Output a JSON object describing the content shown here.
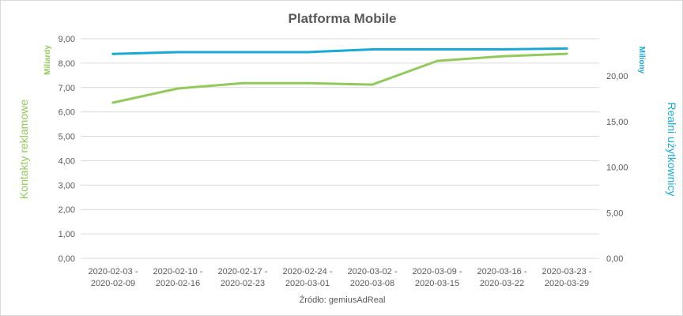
{
  "chart_data": {
    "type": "line",
    "title": "Platforma Mobile",
    "source": "Źródło: gemiusAdReal",
    "categories": [
      [
        "2020-02-03 -",
        "2020-02-09"
      ],
      [
        "2020-02-10 -",
        "2020-02-16"
      ],
      [
        "2020-02-17 -",
        "2020-02-23"
      ],
      [
        "2020-02-24 -",
        "2020-03-01"
      ],
      [
        "2020-03-02 -",
        "2020-03-08"
      ],
      [
        "2020-03-09 -",
        "2020-03-15"
      ],
      [
        "2020-03-16 -",
        "2020-03-22"
      ],
      [
        "2020-03-23 -",
        "2020-03-29"
      ]
    ],
    "left_axis": {
      "label": "Kontakty reklamowe",
      "unit": "Miliardy",
      "ylim": [
        0,
        9
      ],
      "ticks": [
        "0,00",
        "1,00",
        "2,00",
        "3,00",
        "4,00",
        "5,00",
        "6,00",
        "7,00",
        "8,00",
        "9,00"
      ]
    },
    "right_axis": {
      "label": "Realni użytkownicy",
      "unit": "Miliony",
      "ylim": [
        0,
        24.07
      ],
      "ticks": [
        "0,00",
        "5,00",
        "10,00",
        "15,00",
        "20,00"
      ]
    },
    "series": [
      {
        "name": "Kontakty reklamowe",
        "axis": "left",
        "color": "#92c95a",
        "values": [
          6.38,
          6.96,
          7.18,
          7.18,
          7.12,
          8.09,
          8.28,
          8.38
        ]
      },
      {
        "name": "Realni użytkownicy",
        "axis": "right",
        "color": "#1aa9d6",
        "values": [
          22.4,
          22.6,
          22.6,
          22.6,
          22.9,
          22.9,
          22.9,
          23.0
        ]
      }
    ],
    "grid": true
  }
}
